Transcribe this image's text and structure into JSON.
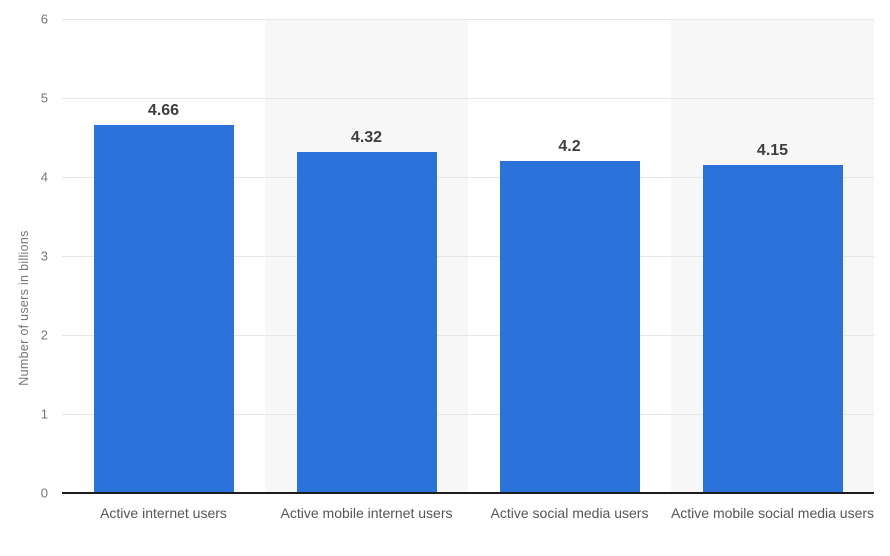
{
  "chart_data": {
    "type": "bar",
    "title": "",
    "xlabel": "",
    "ylabel": "Number of users in billions",
    "categories": [
      "Active internet users",
      "Active mobile internet users",
      "Active social media users",
      "Active mobile social media users"
    ],
    "values": [
      4.66,
      4.32,
      4.2,
      4.15
    ],
    "value_labels": [
      "4.66",
      "4.32",
      "4.2",
      "4.15"
    ],
    "ylim": [
      0,
      6
    ],
    "yticks": [
      0,
      1,
      2,
      3,
      4,
      5,
      6
    ],
    "grid": "horizontal",
    "legend": "none",
    "plot_bands": "alternating-columns",
    "colors": {
      "bar": "#2b73da",
      "gridline": "#e7e7e7",
      "axis_line": "#1c1c1e",
      "column_band": "#f7f7f7",
      "tick_label": "#757578",
      "category_label": "#55565a",
      "value_label": "#3e3e40",
      "background": "#ffffff"
    }
  }
}
